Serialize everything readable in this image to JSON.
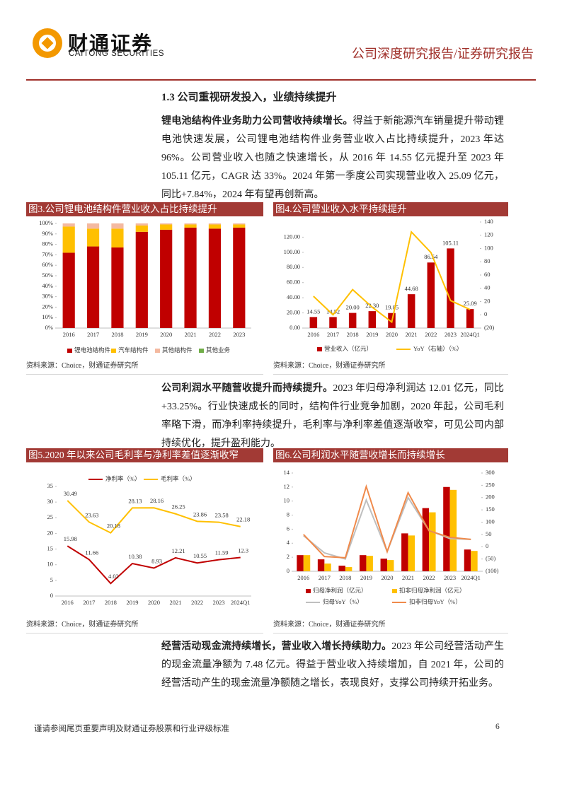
{
  "header": {
    "logo_cn": "财通证券",
    "logo_en": "CAITONG SECURITIES",
    "report_type": "公司深度研究报告/证券研究报告"
  },
  "section_heading": "1.3  公司重视研发投入，业绩持续提升",
  "paragraphs": [
    {
      "lead": "锂电池结构件业务助力公司营收持续增长。",
      "text": "得益于新能源汽车销量提升带动锂电池快速发展，公司锂电池结构件业务营业收入占比持续提升，2023 年达 96%。公司营业收入也随之快速增长，从 2016 年 14.55 亿元提升至 2023 年 105.11 亿元，CAGR 达 33%。2024 年第一季度公司实现营业收入 25.09 亿元，同比+7.84%，2024 年有望再创新高。"
    },
    {
      "lead": "公司利润水平随营收提升而持续提升。",
      "text": "2023 年归母净利润达 12.01 亿元，同比+33.25%。行业快速成长的同时，结构件行业竞争加剧，2020 年起，公司毛利率略下滑，而净利率持续提升，毛利率与净利率差值逐渐收窄，可见公司内部持续优化，提升盈利能力。"
    },
    {
      "lead": "经营活动现金流持续增长，营业收入增长持续助力。",
      "text": "2023 年公司经营活动产生的现金流量净额为 7.48 亿元。得益于营业收入持续增加，自 2021 年，公司的经营活动产生的现金流量净额随之增长，表现良好，支撑公司持续开拓业务。"
    }
  ],
  "chart_data": [
    {
      "type": "bar",
      "stacked": true,
      "title": "图3.公司锂电池结构件营业收入占比持续提升",
      "source": "资料来源：Choice，财通证券研究所",
      "categories": [
        "2016",
        "2017",
        "2018",
        "2019",
        "2020",
        "2021",
        "2022",
        "2023"
      ],
      "series": [
        {
          "name": "锂电池结构件",
          "color": "#c00000",
          "values": [
            72,
            78,
            77,
            92,
            94,
            96,
            95,
            96
          ]
        },
        {
          "name": "汽车结构件",
          "color": "#ffc000",
          "values": [
            25,
            17,
            18,
            6,
            5,
            3,
            4,
            3
          ]
        },
        {
          "name": "其他结构件",
          "color": "#f4b9a0",
          "values": [
            3,
            5,
            5,
            2,
            1,
            1,
            1,
            1
          ]
        },
        {
          "name": "其他业务",
          "color": "#70ad47",
          "values": [
            0,
            0,
            0,
            0,
            0,
            0,
            0,
            0
          ]
        }
      ],
      "ylim": [
        0,
        100
      ],
      "yticks": [
        {
          "value": 0,
          "label": "0%"
        },
        {
          "value": 10,
          "label": "10%"
        },
        {
          "value": 20,
          "label": "20%"
        },
        {
          "value": 30,
          "label": "30%"
        },
        {
          "value": 40,
          "label": "40%"
        },
        {
          "value": 50,
          "label": "50%"
        },
        {
          "value": 60,
          "label": "60%"
        },
        {
          "value": 70,
          "label": "70%"
        },
        {
          "value": 80,
          "label": "80%"
        },
        {
          "value": 90,
          "label": "90%"
        },
        {
          "value": 100,
          "label": "100%"
        }
      ]
    },
    {
      "type": "combo",
      "title": "图4.公司营业收入水平持续提升",
      "source": "资料来源：Choice，财通证券研究所",
      "categories": [
        "2016",
        "2017",
        "2018",
        "2019",
        "2020",
        "2021",
        "2022",
        "2023",
        "2024Q1"
      ],
      "series": [
        {
          "name": "营业收入（亿元）",
          "kind": "bar",
          "color": "#c00000",
          "values": [
            14.55,
            14.52,
            20.0,
            22.3,
            19.85,
            44.68,
            86.54,
            105.11,
            25.09
          ],
          "value_labels": [
            "14.55",
            "14.52",
            "20.00",
            "22.30",
            "19.85",
            "44.68",
            "86.54",
            "105.11",
            "25.09"
          ]
        },
        {
          "name": "YoY（右轴）（%）",
          "kind": "line",
          "axis": "y2",
          "color": "#ffc000",
          "values": [
            28,
            0,
            38,
            11.5,
            -11,
            125,
            94,
            21.5,
            7.84
          ]
        }
      ],
      "ylim": [
        0,
        140
      ],
      "yticks": [
        {
          "value": 0,
          "label": "0.00"
        },
        {
          "value": 20,
          "label": "20.00"
        },
        {
          "value": 40,
          "label": "40.00"
        },
        {
          "value": 60,
          "label": "60.00"
        },
        {
          "value": 80,
          "label": "80.00"
        },
        {
          "value": 100,
          "label": "100.00"
        },
        {
          "value": 120,
          "label": "120.00"
        }
      ],
      "y2lim": [
        -20,
        140
      ],
      "y2ticks": [
        {
          "value": -20,
          "label": "(20)"
        },
        0,
        20,
        40,
        60,
        80,
        100,
        120,
        140
      ]
    },
    {
      "type": "line",
      "title": "图5.2020 年以来公司毛利率与净利率差值逐渐收窄",
      "source": "资料来源：Choice，财通证券研究所",
      "categories": [
        "2016",
        "2017",
        "2018",
        "2019",
        "2020",
        "2021",
        "2022",
        "2023",
        "2024Q1"
      ],
      "series": [
        {
          "name": "净利率（%）",
          "color": "#c00000",
          "data_labels": true,
          "values": [
            15.98,
            11.66,
            4.02,
            10.38,
            8.93,
            12.21,
            10.55,
            11.59,
            12.3
          ]
        },
        {
          "name": "毛利率（%）",
          "color": "#ffc000",
          "data_labels": true,
          "values": [
            30.49,
            23.63,
            20.18,
            28.13,
            28.16,
            26.25,
            23.86,
            23.58,
            22.18
          ]
        }
      ],
      "ylim": [
        0,
        35
      ],
      "yticks": [
        0,
        5,
        10,
        15,
        20,
        25,
        30,
        35
      ]
    },
    {
      "type": "combo",
      "title": "图6.公司利润水平随营收增长而持续增长",
      "source": "资料来源：Choice，财通证券研究所",
      "categories": [
        "2016",
        "2017",
        "2018",
        "2019",
        "2020",
        "2021",
        "2022",
        "2023",
        "2024Q1"
      ],
      "series": [
        {
          "name": "归母净利润（亿元）",
          "kind": "bar",
          "color": "#c00000",
          "values": [
            2.3,
            1.7,
            0.8,
            2.3,
            1.8,
            5.4,
            9.0,
            12.01,
            3.1
          ]
        },
        {
          "name": "扣非归母净利润（亿元）",
          "kind": "bar",
          "color": "#ffc000",
          "values": [
            2.3,
            1.1,
            0.6,
            2.2,
            1.6,
            5.1,
            8.4,
            11.6,
            2.9
          ]
        },
        {
          "name": "归母YoY（%）",
          "kind": "line",
          "axis": "y2",
          "color": "#bfbfbf",
          "values": [
            45,
            -25,
            -50,
            190,
            -20,
            200,
            66,
            33.25,
            30
          ]
        },
        {
          "name": "扣非归母YoY（%）",
          "kind": "line",
          "axis": "y2",
          "color": "#f08a4b",
          "values": [
            50,
            -40,
            -45,
            245,
            -20,
            220,
            65,
            38,
            30
          ]
        }
      ],
      "ylim": [
        0,
        14
      ],
      "yticks": [
        0,
        2,
        4,
        6,
        8,
        10,
        12,
        14
      ],
      "y2lim": [
        -100,
        300
      ],
      "y2ticks": [
        {
          "value": -100,
          "label": "(100)"
        },
        {
          "value": -50,
          "label": "(50)"
        },
        0,
        50,
        100,
        150,
        200,
        250,
        300
      ]
    }
  ],
  "footer": {
    "disclaimer": "谨请参阅尾页重要声明及财通证券股票和行业评级标准",
    "page_number": "6"
  }
}
